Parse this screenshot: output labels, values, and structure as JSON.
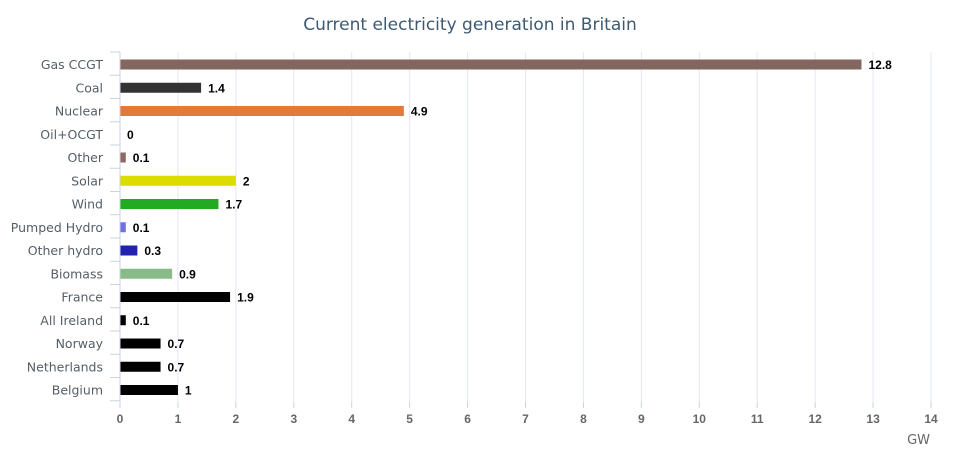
{
  "chart_data": {
    "type": "bar",
    "orientation": "horizontal",
    "title": "Current electricity generation in Britain",
    "xlabel": "GW",
    "xlim": [
      0,
      14
    ],
    "x_ticks": [
      "0",
      "1",
      "2",
      "3",
      "4",
      "5",
      "6",
      "7",
      "8",
      "9",
      "10",
      "11",
      "12",
      "13",
      "14"
    ],
    "grid": "vertical",
    "categories": [
      "Gas CCGT",
      "Coal",
      "Nuclear",
      "Oil+OCGT",
      "Other",
      "Solar",
      "Wind",
      "Pumped Hydro",
      "Other hydro",
      "Biomass",
      "France",
      "All Ireland",
      "Norway",
      "Netherlands",
      "Belgium"
    ],
    "values": [
      12.8,
      1.4,
      4.9,
      0,
      0.1,
      2,
      1.7,
      0.1,
      0.3,
      0.9,
      1.9,
      0.1,
      0.7,
      0.7,
      1
    ],
    "value_labels": [
      "12.8",
      "1.4",
      "4.9",
      "0",
      "0.1",
      "2",
      "1.7",
      "0.1",
      "0.3",
      "0.9",
      "1.9",
      "0.1",
      "0.7",
      "0.7",
      "1"
    ],
    "colors": [
      "#836660",
      "#333333",
      "#e07b39",
      "#c0c0c0",
      "#8f6a64",
      "#dcdc00",
      "#22aa22",
      "#7070ee",
      "#2222aa",
      "#88bb88",
      "#000000",
      "#000000",
      "#000000",
      "#000000",
      "#000000"
    ]
  }
}
